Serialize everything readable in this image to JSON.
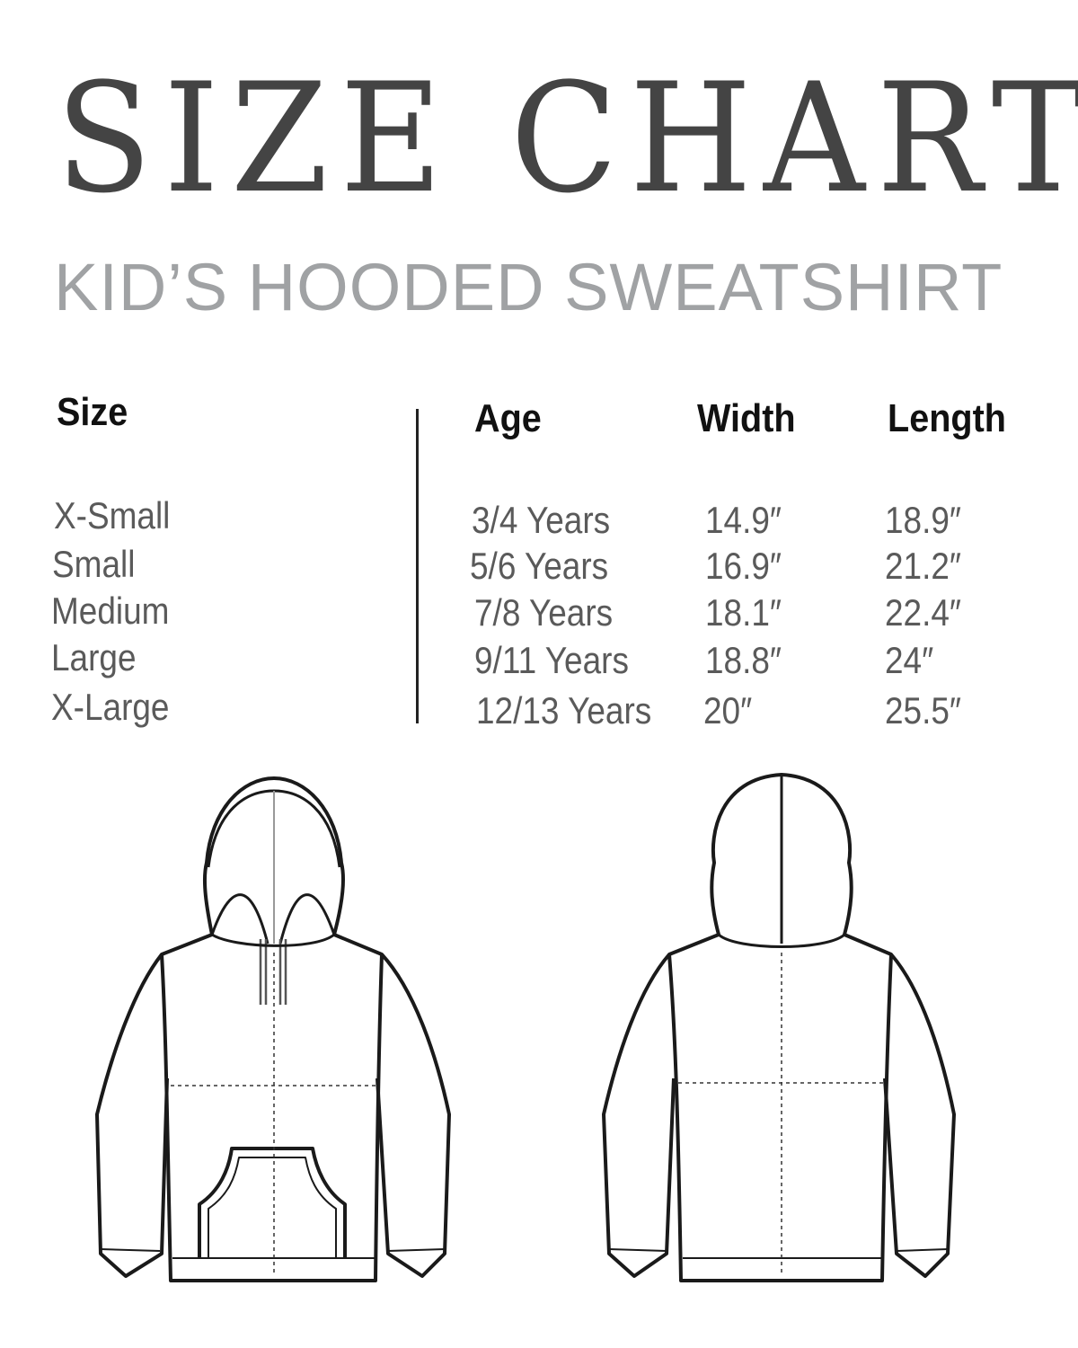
{
  "title": "SIZE CHART",
  "subtitle": "KID’S HOODED SWEATSHIRT",
  "table": {
    "headers": {
      "size": "Size",
      "age": "Age",
      "width": "Width",
      "length": "Length"
    },
    "rows": [
      {
        "size": "X-Small",
        "age": "3/4 Years",
        "width": "14.9″",
        "length": "18.9″"
      },
      {
        "size": "Small",
        "age": "5/6 Years",
        "width": "16.9″",
        "length": "21.2″"
      },
      {
        "size": "Medium",
        "age": "7/8 Years",
        "width": "18.1″",
        "length": "22.4″"
      },
      {
        "size": "Large",
        "age": "9/11 Years",
        "width": "18.8″",
        "length": "24″"
      },
      {
        "size": "X-Large",
        "age": "12/13 Years",
        "width": "20″",
        "length": "25.5″"
      }
    ]
  },
  "illustrations": [
    "hoodie-front",
    "hoodie-back"
  ]
}
